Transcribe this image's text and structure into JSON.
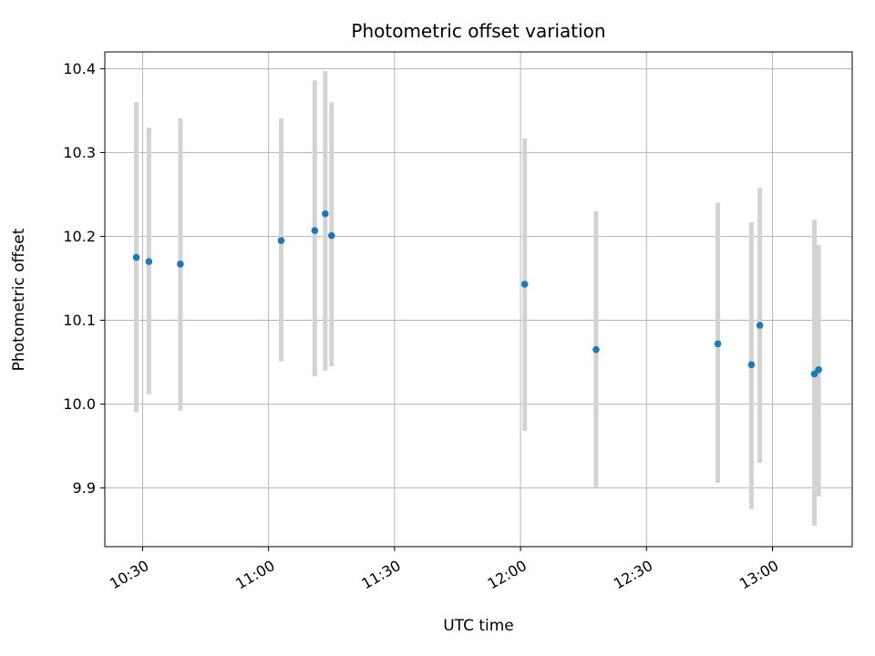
{
  "chart_data": {
    "type": "scatter",
    "title": "Photometric offset variation",
    "xlabel": "UTC time",
    "ylabel": "Photometric offset",
    "grid": true,
    "legend": false,
    "marker_color": "#1f77b4",
    "errorbar_color": "#d3d3d3",
    "frame_color": "#000000",
    "grid_color": "#b0b0b0",
    "xlim_minutes": [
      621,
      799
    ],
    "ylim": [
      9.83,
      10.42
    ],
    "x_ticks": [
      {
        "minutes": 630,
        "label": "10:30"
      },
      {
        "minutes": 660,
        "label": "11:00"
      },
      {
        "minutes": 690,
        "label": "11:30"
      },
      {
        "minutes": 720,
        "label": "12:00"
      },
      {
        "minutes": 750,
        "label": "12:30"
      },
      {
        "minutes": 780,
        "label": "13:00"
      }
    ],
    "y_ticks": [
      {
        "value": 9.9,
        "label": "9.9"
      },
      {
        "value": 10.0,
        "label": "10.0"
      },
      {
        "value": 10.1,
        "label": "10.1"
      },
      {
        "value": 10.2,
        "label": "10.2"
      },
      {
        "value": 10.3,
        "label": "10.3"
      },
      {
        "value": 10.4,
        "label": "10.4"
      }
    ],
    "points": [
      {
        "time": "10:29",
        "minutes": 628.5,
        "y": 10.175,
        "lo": 9.99,
        "hi": 10.36
      },
      {
        "time": "10:32",
        "minutes": 631.5,
        "y": 10.17,
        "lo": 10.012,
        "hi": 10.33
      },
      {
        "time": "10:39",
        "minutes": 639.0,
        "y": 10.167,
        "lo": 9.992,
        "hi": 10.341
      },
      {
        "time": "11:03",
        "minutes": 663.0,
        "y": 10.195,
        "lo": 10.051,
        "hi": 10.341
      },
      {
        "time": "11:11",
        "minutes": 671.0,
        "y": 10.207,
        "lo": 10.033,
        "hi": 10.386
      },
      {
        "time": "11:14",
        "minutes": 673.5,
        "y": 10.227,
        "lo": 10.04,
        "hi": 10.397
      },
      {
        "time": "11:15",
        "minutes": 675.0,
        "y": 10.201,
        "lo": 10.045,
        "hi": 10.36
      },
      {
        "time": "12:01",
        "minutes": 721.0,
        "y": 10.143,
        "lo": 9.968,
        "hi": 10.317
      },
      {
        "time": "12:18",
        "minutes": 738.0,
        "y": 10.065,
        "lo": 9.901,
        "hi": 10.23
      },
      {
        "time": "12:47",
        "minutes": 767.0,
        "y": 10.072,
        "lo": 9.906,
        "hi": 10.24
      },
      {
        "time": "12:55",
        "minutes": 775.0,
        "y": 10.047,
        "lo": 9.875,
        "hi": 10.217
      },
      {
        "time": "12:57",
        "minutes": 777.0,
        "y": 10.094,
        "lo": 9.93,
        "hi": 10.258
      },
      {
        "time": "13:10",
        "minutes": 790.0,
        "y": 10.036,
        "lo": 9.855,
        "hi": 10.22
      },
      {
        "time": "13:11",
        "minutes": 791.0,
        "y": 10.041,
        "lo": 9.89,
        "hi": 10.19
      }
    ]
  }
}
